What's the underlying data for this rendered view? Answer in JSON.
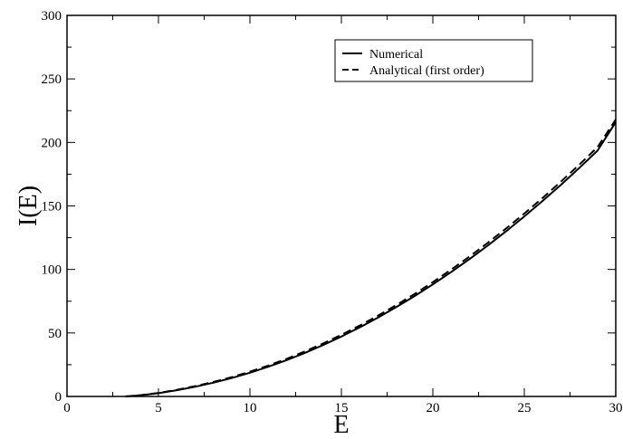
{
  "chart_data": {
    "type": "line",
    "xlabel": "E",
    "ylabel": "I(E)",
    "xlim": [
      0,
      30
    ],
    "ylim": [
      0,
      300
    ],
    "xticks": [
      0,
      5,
      10,
      15,
      20,
      25,
      30
    ],
    "yticks": [
      0,
      50,
      100,
      150,
      200,
      250,
      300
    ],
    "xtick_labels": [
      "0",
      "5",
      "10",
      "15",
      "20",
      "25",
      "30"
    ],
    "ytick_labels": [
      "0",
      "50",
      "100",
      "150",
      "200",
      "250",
      "300"
    ],
    "grid": false,
    "legend_position": "top-right",
    "series": [
      {
        "name": "Numerical",
        "style": "solid",
        "color": "#000000",
        "x": [
          3.2,
          4,
          5,
          6,
          7,
          8,
          9,
          10,
          11,
          12,
          13,
          14,
          15,
          16,
          17,
          18,
          19,
          20,
          21,
          22,
          23,
          24,
          25,
          26,
          27,
          28,
          29,
          30
        ],
        "y": [
          0,
          0.9,
          2.6,
          4.9,
          7.6,
          10.8,
          14.5,
          18.7,
          23.4,
          28.6,
          34.3,
          40.5,
          47.2,
          54.4,
          62.1,
          70.3,
          79.0,
          88.2,
          97.9,
          108.1,
          118.8,
          130.0,
          141.7,
          153.9,
          166.6,
          179.8,
          193.5,
          216.0
        ]
      },
      {
        "name": "Analytical (first order)",
        "style": "dashed",
        "color": "#000000",
        "x": [
          3.2,
          4,
          5,
          6,
          7,
          8,
          9,
          10,
          11,
          12,
          13,
          14,
          15,
          16,
          17,
          18,
          19,
          20,
          21,
          22,
          23,
          24,
          25,
          26,
          27,
          28,
          29,
          30
        ],
        "y": [
          0,
          1.0,
          2.8,
          5.2,
          8.1,
          11.4,
          15.2,
          19.5,
          24.3,
          29.6,
          35.4,
          41.7,
          48.5,
          55.8,
          63.6,
          71.9,
          80.7,
          90.0,
          99.8,
          110.1,
          120.9,
          132.2,
          144.0,
          156.3,
          169.1,
          182.4,
          196.2,
          218.0
        ]
      }
    ]
  }
}
